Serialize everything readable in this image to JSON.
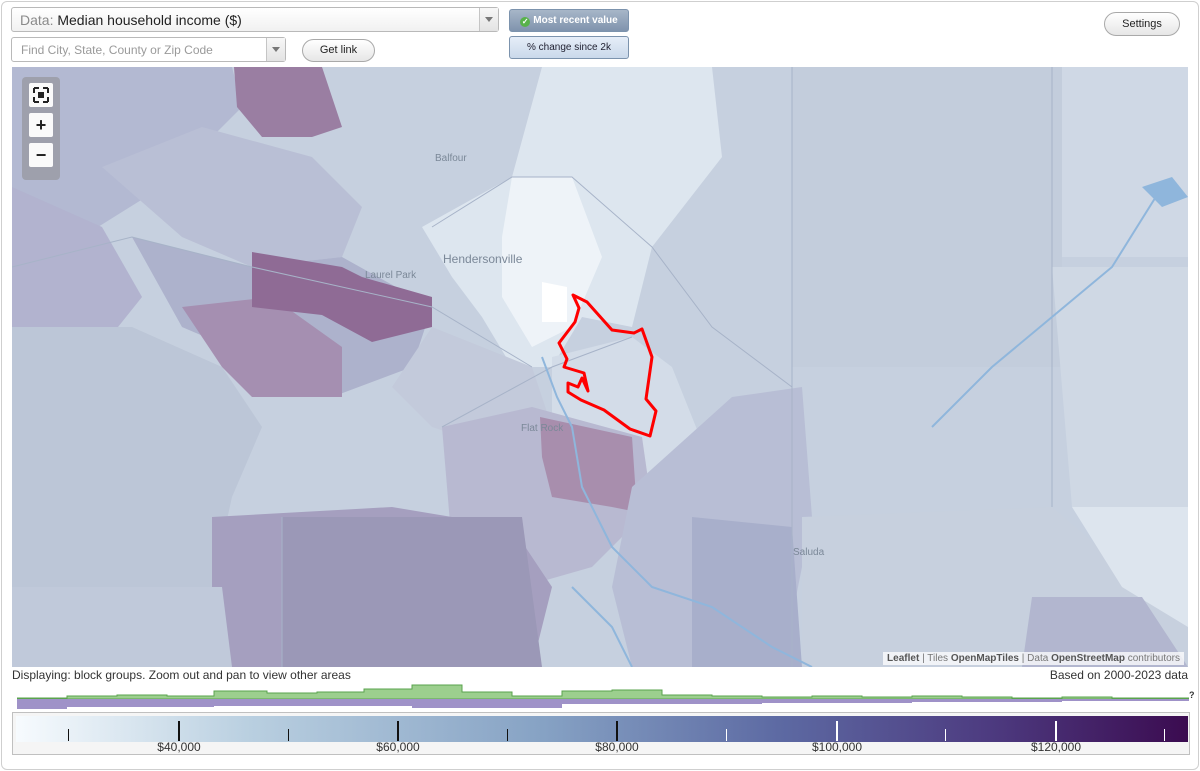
{
  "controls": {
    "data_prefix": "Data:",
    "data_value": "Median household income ($)",
    "search_placeholder": "Find City, State, County or Zip Code",
    "get_link_label": "Get link",
    "settings_label": "Settings",
    "toggle_recent_label": "Most recent value",
    "toggle_change_label": "% change since 2k"
  },
  "map": {
    "places": {
      "hendersonville": "Hendersonville",
      "balfour": "Balfour",
      "laurel_park": "Laurel Park",
      "flat_rock": "Flat Rock",
      "saluda": "Saluda"
    },
    "zoom_in_label": "+",
    "zoom_out_label": "−",
    "attribution": {
      "leaflet": "Leaflet",
      "sep1": "|",
      "tiles_prefix": "Tiles",
      "tiles": "OpenMapTiles",
      "sep2": "|",
      "data_prefix": "Data",
      "osm": "OpenStreetMap",
      "suffix": "contributors"
    },
    "colors": {
      "outline": "#ff0000",
      "water": "#8fb6dc",
      "low": "#e9f0f6",
      "high": "#8f6a90"
    }
  },
  "footer": {
    "displaying": "Displaying: block groups. Zoom out and pan to view other areas",
    "based_on": "Based on 2000-2023 data",
    "histogram_unknown": "?"
  },
  "legend": {
    "labels": [
      "$40,000",
      "$60,000",
      "$80,000",
      "$100,000",
      "$120,000"
    ],
    "scale_start": "#f7fbfe",
    "scale_end": "#3b0b50"
  }
}
